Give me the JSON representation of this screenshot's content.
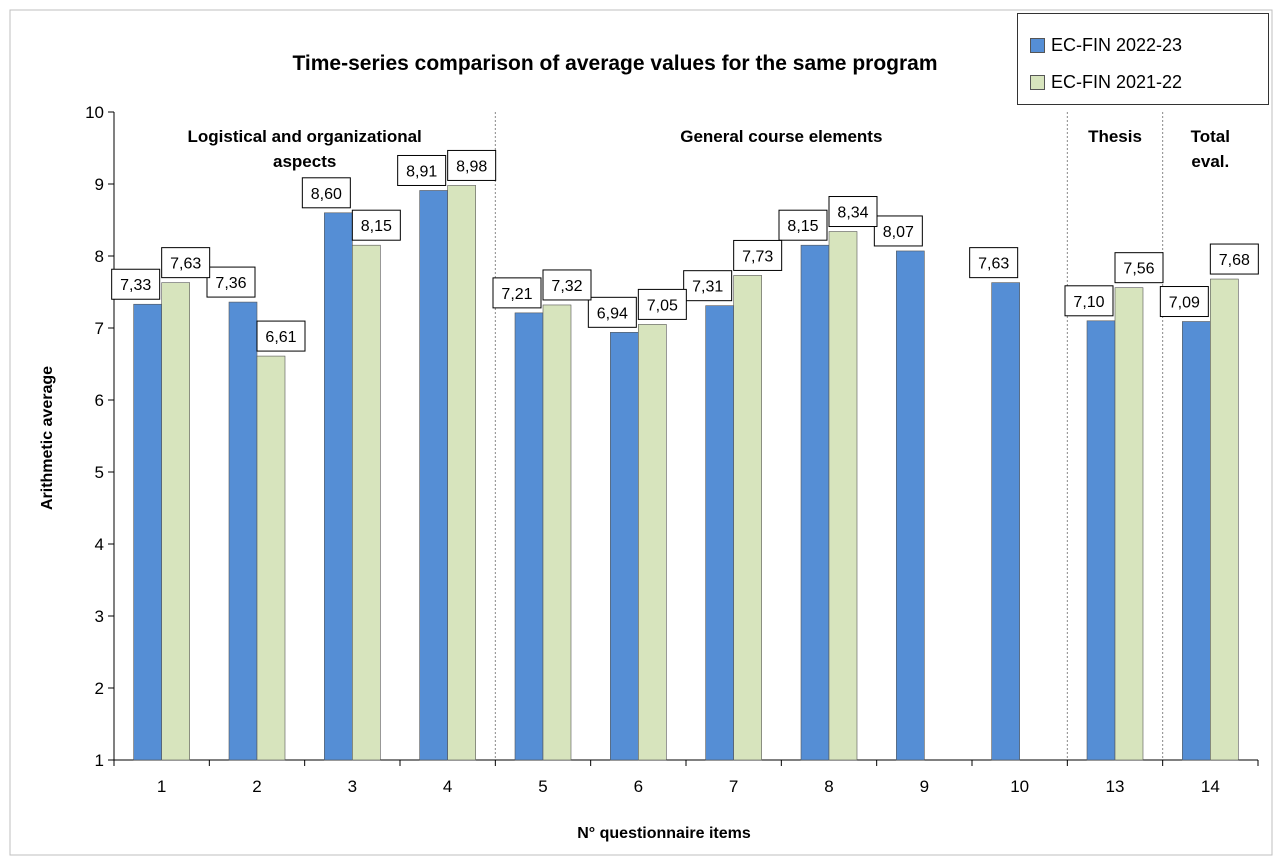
{
  "chart_data": {
    "type": "bar",
    "title": "Time-series comparison of average values for the same program",
    "xlabel": "N° questionnaire items",
    "ylabel": "Arithmetic average",
    "ylim": [
      1,
      10
    ],
    "yticks": [
      "1",
      "2",
      "3",
      "4",
      "5",
      "6",
      "7",
      "8",
      "9",
      "10"
    ],
    "categories": [
      "1",
      "2",
      "3",
      "4",
      "5",
      "6",
      "7",
      "8",
      "9",
      "10",
      "13",
      "14"
    ],
    "series": [
      {
        "name": "EC-FIN 2022-23",
        "color": "#558ED5",
        "values": [
          7.33,
          7.36,
          8.6,
          8.91,
          7.21,
          6.94,
          7.31,
          8.15,
          8.07,
          7.63,
          7.1,
          7.09
        ],
        "labels": [
          "7,33",
          "7,36",
          "8,60",
          "8,91",
          "7,21",
          "6,94",
          "7,31",
          "8,15",
          "8,07",
          "7,63",
          "7,10",
          "7,09"
        ]
      },
      {
        "name": "EC-FIN 2021-22",
        "color": "#D7E4BD",
        "values": [
          7.63,
          6.61,
          8.15,
          8.98,
          7.32,
          7.05,
          7.73,
          8.34,
          null,
          null,
          7.56,
          7.68
        ],
        "labels": [
          "7,63",
          "6,61",
          "8,15",
          "8,98",
          "7,32",
          "7,05",
          "7,73",
          "8,34",
          "",
          "",
          "7,56",
          "7,68"
        ]
      }
    ],
    "groups": [
      {
        "label_lines": [
          "Logistical and organizational",
          "aspects"
        ],
        "start": 0,
        "end": 3
      },
      {
        "label_lines": [
          "General course elements"
        ],
        "start": 4,
        "end": 9
      },
      {
        "label_lines": [
          "Thesis"
        ],
        "start": 10,
        "end": 10
      },
      {
        "label_lines": [
          "Total",
          "eval."
        ],
        "start": 11,
        "end": 11
      }
    ],
    "legend_position": "top-right",
    "grid": false
  }
}
